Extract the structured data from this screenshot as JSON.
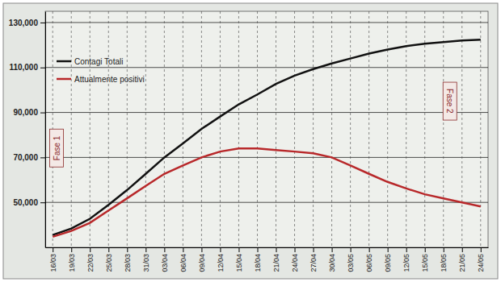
{
  "chart_data": {
    "type": "line",
    "categories": [
      "16/03",
      "19/03",
      "22/03",
      "25/03",
      "28/03",
      "31/03",
      "03/04",
      "06/04",
      "09/04",
      "12/04",
      "15/04",
      "18/04",
      "21/04",
      "24/04",
      "27/04",
      "30/04",
      "03/05",
      "06/05",
      "09/05",
      "12/05",
      "15/05",
      "18/05",
      "21/05",
      "24/05"
    ],
    "series": [
      {
        "name": "Contagi Totali",
        "color": "#111111",
        "line_style": "solid",
        "values": [
          35500,
          38400,
          42700,
          48900,
          55500,
          62700,
          70000,
          76200,
          82700,
          88200,
          93600,
          98000,
          102700,
          106400,
          109300,
          111800,
          114000,
          116200,
          118000,
          119500,
          120600,
          121300,
          122000,
          122400
        ]
      },
      {
        "name": "Attualmente positivi",
        "color": "#b8282a",
        "line_style": "solid",
        "values": [
          34700,
          37300,
          40900,
          46400,
          51800,
          57300,
          62700,
          66400,
          70000,
          72600,
          74000,
          74000,
          73300,
          72600,
          71800,
          70000,
          66400,
          62700,
          59100,
          56200,
          53600,
          51800,
          50000,
          48200
        ]
      }
    ],
    "ylim": [
      30000,
      135000
    ],
    "yticks": [
      {
        "value": 50000,
        "label": "50,000"
      },
      {
        "value": 70000,
        "label": "70,000"
      },
      {
        "value": 90000,
        "label": "90,000"
      },
      {
        "value": 110000,
        "label": "110,000"
      },
      {
        "value": 130000,
        "label": "130,000"
      }
    ],
    "grid": true,
    "legend": "top-left",
    "annotations": [
      "Fase 1",
      "Fase 2"
    ]
  }
}
